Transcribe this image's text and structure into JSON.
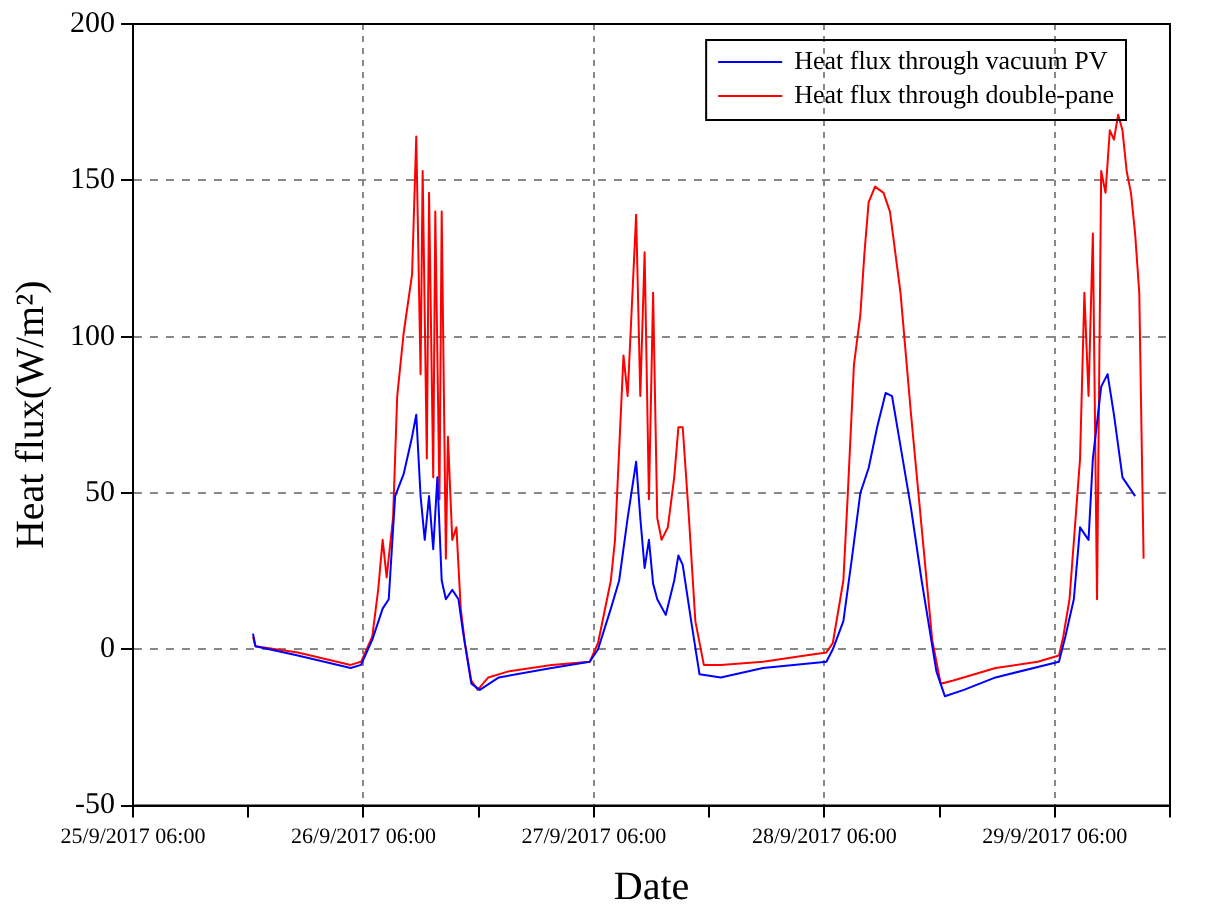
{
  "chart_data": {
    "type": "line",
    "xlabel": "Date",
    "ylabel": "Heat flux(W/m²)",
    "xlim": [
      "2017-09-25T06:00",
      "2017-09-29T18:00"
    ],
    "xticks": [
      {
        "value": "2017-09-25T06:00",
        "label": "25/9/2017 06:00"
      },
      {
        "value": "2017-09-25T18:00",
        "label": null
      },
      {
        "value": "2017-09-26T06:00",
        "label": "26/9/2017 06:00"
      },
      {
        "value": "2017-09-26T18:00",
        "label": null
      },
      {
        "value": "2017-09-27T06:00",
        "label": "27/9/2017 06:00"
      },
      {
        "value": "2017-09-27T18:00",
        "label": null
      },
      {
        "value": "2017-09-28T06:00",
        "label": "28/9/2017 06:00"
      },
      {
        "value": "2017-09-28T18:00",
        "label": null
      },
      {
        "value": "2017-09-29T06:00",
        "label": "29/9/2017 06:00"
      },
      {
        "value": "2017-09-29T18:00",
        "label": null
      }
    ],
    "ylim": [
      -50,
      200
    ],
    "yticks": [
      -50,
      0,
      50,
      100,
      150,
      200
    ],
    "grid": true,
    "legend": "top right",
    "marker": "none",
    "line_style": "solid",
    "series": [
      {
        "name": "Heat flux through vacuum PV",
        "color": "#0000ff",
        "x": [
          "2017-09-25T18:30",
          "2017-09-25T18:45",
          "2017-09-25T23:10",
          "2017-09-26T04:40",
          "2017-09-26T05:45",
          "2017-09-26T06:55",
          "2017-09-26T08:00",
          "2017-09-26T08:38",
          "2017-09-26T09:18",
          "2017-09-26T10:11",
          "2017-09-26T11:04",
          "2017-09-26T11:30",
          "2017-09-26T11:57",
          "2017-09-26T12:23",
          "2017-09-26T12:50",
          "2017-09-26T13:16",
          "2017-09-26T13:42",
          "2017-09-26T14:09",
          "2017-09-26T14:35",
          "2017-09-26T15:15",
          "2017-09-26T15:54",
          "2017-09-26T16:21",
          "2017-09-26T17:14",
          "2017-09-26T18:07",
          "2017-09-26T20:06",
          "2017-09-27T01:36",
          "2017-09-27T05:34",
          "2017-09-27T06:26",
          "2017-09-27T07:46",
          "2017-09-27T08:38",
          "2017-09-27T09:31",
          "2017-09-27T10:24",
          "2017-09-27T10:50",
          "2017-09-27T11:17",
          "2017-09-27T11:44",
          "2017-09-27T12:10",
          "2017-09-27T12:36",
          "2017-09-27T13:29",
          "2017-09-27T14:22",
          "2017-09-27T14:48",
          "2017-09-27T15:15",
          "2017-09-27T16:08",
          "2017-09-27T17:00",
          "2017-09-27T19:13",
          "2017-09-27T23:37",
          "2017-09-28T06:13",
          "2017-09-28T06:53",
          "2017-09-28T07:59",
          "2017-09-28T08:52",
          "2017-09-28T09:45",
          "2017-09-28T10:37",
          "2017-09-28T11:30",
          "2017-09-28T12:23",
          "2017-09-28T13:03",
          "2017-09-28T13:56",
          "2017-09-28T15:02",
          "2017-09-28T16:08",
          "2017-09-28T17:40",
          "2017-09-28T18:33",
          "2017-09-28T20:32",
          "2017-09-28T23:50",
          "2017-09-29T06:26",
          "2017-09-29T07:06",
          "2017-09-29T07:59",
          "2017-09-29T08:38",
          "2017-09-29T09:31",
          "2017-09-29T09:58",
          "2017-09-29T10:50",
          "2017-09-29T11:30",
          "2017-09-29T12:10",
          "2017-09-29T13:03",
          "2017-09-29T14:22"
        ],
        "values": [
          5,
          1,
          -2,
          -6,
          -5,
          3,
          13,
          16,
          49,
          56,
          68,
          75,
          49,
          35,
          49,
          32,
          55,
          22,
          16,
          19,
          16,
          6,
          -11,
          -13,
          -9,
          -6,
          -4,
          0,
          13,
          22,
          42,
          60,
          42,
          26,
          35,
          21,
          16,
          11,
          22,
          30,
          27,
          9,
          -8,
          -9,
          -6,
          -4,
          0,
          9,
          29,
          50,
          58,
          71,
          82,
          81,
          65,
          45,
          22,
          -7,
          -15,
          -13,
          -9,
          -4,
          4,
          16,
          39,
          35,
          61,
          84,
          88,
          75,
          55,
          49
        ]
      },
      {
        "name": "Heat flux through double-pane",
        "color": "#ff0000",
        "x": [
          "2017-09-25T18:30",
          "2017-09-25T18:45",
          "2017-09-25T23:10",
          "2017-09-26T04:40",
          "2017-09-26T05:45",
          "2017-09-26T06:55",
          "2017-09-26T07:32",
          "2017-09-26T08:00",
          "2017-09-26T08:25",
          "2017-09-26T09:05",
          "2017-09-26T09:31",
          "2017-09-26T10:11",
          "2017-09-26T11:04",
          "2017-09-26T11:30",
          "2017-09-26T11:57",
          "2017-09-26T12:10",
          "2017-09-26T12:36",
          "2017-09-26T12:50",
          "2017-09-26T13:16",
          "2017-09-26T13:29",
          "2017-09-26T13:55",
          "2017-09-26T14:09",
          "2017-09-26T14:35",
          "2017-09-26T14:48",
          "2017-09-26T15:15",
          "2017-09-26T15:41",
          "2017-09-26T16:08",
          "2017-09-26T16:34",
          "2017-09-26T17:14",
          "2017-09-26T17:54",
          "2017-09-26T19:00",
          "2017-09-26T21:12",
          "2017-09-27T01:36",
          "2017-09-27T05:34",
          "2017-09-27T06:26",
          "2017-09-27T07:46",
          "2017-09-27T08:12",
          "2017-09-27T09:05",
          "2017-09-27T09:31",
          "2017-09-27T10:24",
          "2017-09-27T10:50",
          "2017-09-27T11:17",
          "2017-09-27T11:44",
          "2017-09-27T12:10",
          "2017-09-27T12:36",
          "2017-09-27T13:03",
          "2017-09-27T13:42",
          "2017-09-27T14:22",
          "2017-09-27T14:48",
          "2017-09-27T15:15",
          "2017-09-27T15:54",
          "2017-09-27T16:34",
          "2017-09-27T17:27",
          "2017-09-27T19:13",
          "2017-09-27T23:37",
          "2017-09-28T04:01",
          "2017-09-28T06:13",
          "2017-09-28T06:53",
          "2017-09-28T07:59",
          "2017-09-28T08:25",
          "2017-09-28T09:05",
          "2017-09-28T09:45",
          "2017-09-28T10:11",
          "2017-09-28T10:37",
          "2017-09-28T11:17",
          "2017-09-28T12:10",
          "2017-09-28T12:50",
          "2017-09-28T13:56",
          "2017-09-28T15:02",
          "2017-09-28T16:08",
          "2017-09-28T17:14",
          "2017-09-28T18:07",
          "2017-09-28T19:26",
          "2017-09-28T23:50",
          "2017-09-29T04:14",
          "2017-09-29T06:26",
          "2017-09-29T06:53",
          "2017-09-29T07:32",
          "2017-09-29T08:38",
          "2017-09-29T09:05",
          "2017-09-29T09:31",
          "2017-09-29T09:58",
          "2017-09-29T10:24",
          "2017-09-29T10:50",
          "2017-09-29T11:17",
          "2017-09-29T11:44",
          "2017-09-29T12:10",
          "2017-09-29T12:36",
          "2017-09-29T13:03",
          "2017-09-29T13:29",
          "2017-09-29T13:56",
          "2017-09-29T14:22",
          "2017-09-29T14:48",
          "2017-09-29T15:15"
        ],
        "values": [
          4,
          1,
          -1,
          -5,
          -4,
          4,
          19,
          35,
          23,
          42,
          81,
          101,
          120,
          164,
          88,
          153,
          61,
          146,
          55,
          140,
          48,
          140,
          29,
          68,
          35,
          39,
          13,
          2,
          -10,
          -13,
          -9,
          -7,
          -5,
          -4,
          2,
          22,
          35,
          94,
          81,
          139,
          81,
          127,
          48,
          114,
          42,
          35,
          39,
          55,
          71,
          71,
          42,
          9,
          -5,
          -5,
          -4,
          -2,
          -1,
          2,
          22,
          48,
          91,
          107,
          127,
          143,
          148,
          146,
          140,
          114,
          75,
          39,
          3,
          -11,
          -10,
          -6,
          -4,
          -2,
          4,
          16,
          61,
          114,
          81,
          133,
          16,
          153,
          146,
          166,
          163,
          171,
          166,
          153,
          146,
          133,
          114,
          29
        ]
      }
    ]
  }
}
